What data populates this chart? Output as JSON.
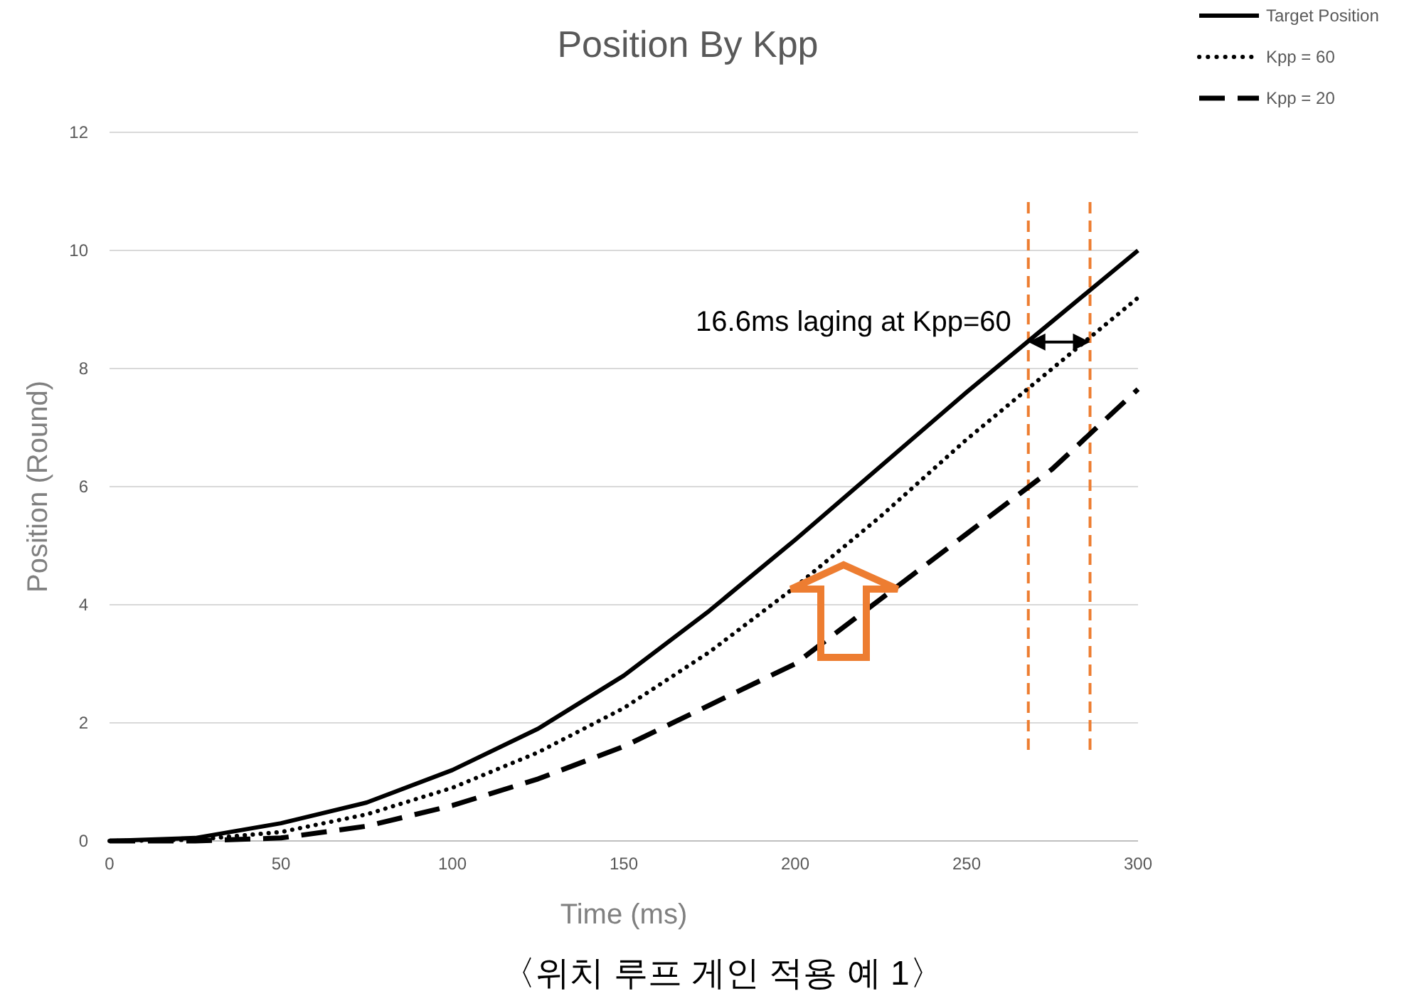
{
  "chart_data": {
    "type": "line",
    "title": "Position By Kpp",
    "xlabel": "Time (ms)",
    "ylabel": "Position (Round)",
    "x": [
      0,
      25,
      50,
      75,
      100,
      125,
      150,
      175,
      200,
      225,
      250,
      275,
      300
    ],
    "series": [
      {
        "name": "Target Position",
        "color": "#000000",
        "line_style": "solid",
        "values": [
          0,
          0.05,
          0.3,
          0.65,
          1.2,
          1.9,
          2.8,
          3.9,
          5.1,
          6.35,
          7.6,
          8.8,
          10.0
        ]
      },
      {
        "name": "Kpp = 60",
        "color": "#000000",
        "line_style": "dotted",
        "values": [
          0,
          0.02,
          0.15,
          0.45,
          0.9,
          1.5,
          2.25,
          3.2,
          4.3,
          5.5,
          6.8,
          8.0,
          9.2
        ]
      },
      {
        "name": "Kpp = 20",
        "color": "#000000",
        "line_style": "dashed",
        "values": [
          0,
          0,
          0.05,
          0.25,
          0.6,
          1.05,
          1.6,
          2.3,
          3.0,
          4.1,
          5.2,
          6.3,
          7.65
        ]
      }
    ],
    "xlim": [
      0,
      300
    ],
    "ylim": [
      0,
      12
    ],
    "xticks": [
      0,
      50,
      100,
      150,
      200,
      250,
      300
    ],
    "yticks": [
      0,
      2,
      4,
      6,
      8,
      10,
      12
    ],
    "grid": "y",
    "legend": "top right",
    "marker": "none",
    "ref_lines": [
      {
        "axis": "x",
        "value": 268,
        "color": "#ed7d31",
        "line_style": "dashed"
      },
      {
        "axis": "x",
        "value": 286,
        "color": "#ed7d31",
        "line_style": "dashed"
      }
    ],
    "annotations": [
      {
        "text": "16.6ms laging at Kpp=60",
        "x": 268,
        "y": 8.45
      },
      "〈위치 루프 게인 적용 예 1〉"
    ]
  }
}
